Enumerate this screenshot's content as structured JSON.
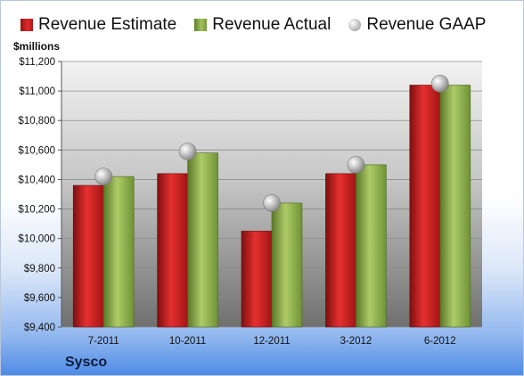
{
  "legend": {
    "estimate": "Revenue Estimate",
    "actual": "Revenue Actual",
    "gaap": "Revenue GAAP"
  },
  "unit_label": "$millions",
  "company": "Sysco",
  "colors": {
    "estimate": "#c81f1f",
    "actual": "#8fb04a",
    "gaap": "#bdbdbd"
  },
  "chart_data": {
    "type": "bar",
    "categories": [
      "7-2011",
      "10-2011",
      "12-2011",
      "3-2012",
      "6-2012"
    ],
    "series": [
      {
        "name": "Revenue Estimate",
        "type": "bar",
        "values": [
          10360,
          10440,
          10050,
          10440,
          11040
        ]
      },
      {
        "name": "Revenue Actual",
        "type": "bar",
        "values": [
          10420,
          10580,
          10240,
          10500,
          11040
        ]
      },
      {
        "name": "Revenue GAAP",
        "type": "scatter",
        "values": [
          10420,
          10590,
          10240,
          10500,
          11050
        ]
      }
    ],
    "ylabel": "$millions",
    "ylim": [
      9400,
      11200
    ],
    "yticks": [
      "$9,400",
      "$9,600",
      "$9,800",
      "$10,000",
      "$10,200",
      "$10,400",
      "$10,600",
      "$10,800",
      "$11,000",
      "$11,200"
    ],
    "grid": true,
    "legend_position": "top"
  }
}
